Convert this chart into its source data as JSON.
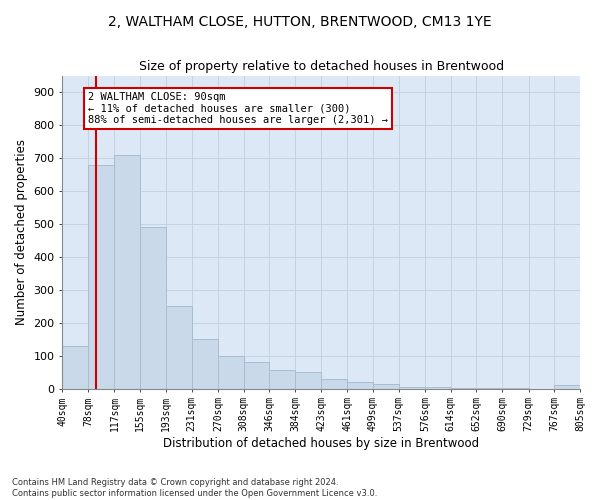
{
  "title_line1": "2, WALTHAM CLOSE, HUTTON, BRENTWOOD, CM13 1YE",
  "title_line2": "Size of property relative to detached houses in Brentwood",
  "xlabel": "Distribution of detached houses by size in Brentwood",
  "ylabel": "Number of detached properties",
  "bar_color": "#c9d9ea",
  "bar_edge_color": "#a8bdd0",
  "grid_color": "#c5d2e0",
  "bg_color": "#dce8f5",
  "property_line_color": "#cc0000",
  "property_line_x": 90,
  "annotation_text": "2 WALTHAM CLOSE: 90sqm\n← 11% of detached houses are smaller (300)\n88% of semi-detached houses are larger (2,301) →",
  "annotation_box_color": "#ffffff",
  "annotation_box_edge": "#cc0000",
  "bin_edges": [
    40,
    78,
    117,
    155,
    193,
    231,
    270,
    308,
    346,
    384,
    423,
    461,
    499,
    537,
    576,
    614,
    652,
    690,
    729,
    767,
    805
  ],
  "bin_labels": [
    "40sqm",
    "78sqm",
    "117sqm",
    "155sqm",
    "193sqm",
    "231sqm",
    "270sqm",
    "308sqm",
    "346sqm",
    "384sqm",
    "423sqm",
    "461sqm",
    "499sqm",
    "537sqm",
    "576sqm",
    "614sqm",
    "652sqm",
    "690sqm",
    "729sqm",
    "767sqm",
    "805sqm"
  ],
  "bar_heights": [
    130,
    680,
    710,
    490,
    250,
    150,
    100,
    80,
    55,
    50,
    30,
    20,
    15,
    5,
    5,
    3,
    2,
    1,
    0,
    12
  ],
  "ylim": [
    0,
    950
  ],
  "yticks": [
    0,
    100,
    200,
    300,
    400,
    500,
    600,
    700,
    800,
    900
  ],
  "footnote": "Contains HM Land Registry data © Crown copyright and database right 2024.\nContains public sector information licensed under the Open Government Licence v3.0."
}
